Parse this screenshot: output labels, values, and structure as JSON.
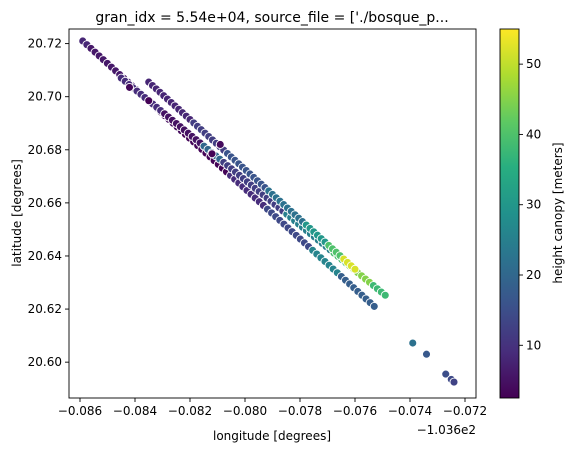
{
  "chart_data": {
    "type": "scatter",
    "title": "gran_idx = 5.54e+04, source_file = ['./bosque_p...",
    "xlabel": "longitude [degrees]",
    "ylabel": "latitude [degrees]",
    "x_offset_label": "−1.036e2",
    "xlim": [
      -0.0864,
      -0.0716
    ],
    "ylim": [
      20.5865,
      20.7255
    ],
    "x_ticks": [
      -0.086,
      -0.084,
      -0.082,
      -0.08,
      -0.078,
      -0.076,
      -0.074,
      -0.072
    ],
    "x_tick_labels": [
      "−0.086",
      "−0.084",
      "−0.082",
      "−0.080",
      "−0.078",
      "−0.076",
      "−0.074",
      "−0.072"
    ],
    "y_ticks": [
      20.6,
      20.62,
      20.64,
      20.66,
      20.68,
      20.7,
      20.72
    ],
    "y_tick_labels": [
      "20.60",
      "20.62",
      "20.64",
      "20.66",
      "20.68",
      "20.70",
      "20.72"
    ],
    "colorbar": {
      "label": "height canopy [meters]",
      "range": [
        2.5,
        55
      ],
      "ticks": [
        10,
        20,
        30,
        40,
        50
      ],
      "tick_labels": [
        "10",
        "20",
        "30",
        "40",
        "50"
      ],
      "colormap": "viridis"
    },
    "tracks": [
      {
        "x_start": -0.0859,
        "y_start": 20.721,
        "x_end": -0.0753,
        "y_end": 20.621,
        "count": 72,
        "segments": [
          [
            0,
            0.02,
            8
          ],
          [
            0.02,
            0.18,
            6
          ],
          [
            0.18,
            0.34,
            4
          ],
          [
            0.34,
            0.5,
            3
          ],
          [
            0.5,
            0.62,
            9
          ],
          [
            0.62,
            0.78,
            14
          ],
          [
            0.78,
            0.88,
            26
          ],
          [
            0.88,
            1.0,
            18
          ]
        ]
      },
      {
        "x_start": -0.0845,
        "y_start": 20.707,
        "x_end": -0.0749,
        "y_end": 20.6252,
        "count": 68,
        "segments": [
          [
            0,
            0.16,
            9
          ],
          [
            0.16,
            0.3,
            5
          ],
          [
            0.3,
            0.38,
            20
          ],
          [
            0.38,
            0.62,
            12
          ],
          [
            0.62,
            0.8,
            25
          ],
          [
            0.8,
            0.86,
            39
          ],
          [
            0.86,
            0.95,
            45
          ],
          [
            0.95,
            1.0,
            38
          ]
        ]
      },
      {
        "x_start": -0.0835,
        "y_start": 20.7055,
        "x_end": -0.076,
        "y_end": 20.635,
        "count": 56,
        "segments": [
          [
            0,
            0.2,
            8
          ],
          [
            0.2,
            0.38,
            12
          ],
          [
            0.38,
            0.58,
            16
          ],
          [
            0.58,
            0.76,
            22
          ],
          [
            0.76,
            0.86,
            30
          ],
          [
            0.86,
            0.94,
            40
          ],
          [
            0.94,
            1.0,
            52
          ]
        ]
      }
    ],
    "points": [
      {
        "x": -0.0739,
        "y": 20.6072,
        "c": 22
      },
      {
        "x": -0.0734,
        "y": 20.603,
        "c": 17
      },
      {
        "x": -0.0727,
        "y": 20.5955,
        "c": 15
      },
      {
        "x": -0.0725,
        "y": 20.5935,
        "c": 14
      },
      {
        "x": -0.0724,
        "y": 20.5925,
        "c": 13
      },
      {
        "x": -0.0809,
        "y": 20.682,
        "c": 4
      },
      {
        "x": -0.0812,
        "y": 20.6785,
        "c": 3
      },
      {
        "x": -0.0835,
        "y": 20.6985,
        "c": 2.8
      },
      {
        "x": -0.0842,
        "y": 20.7035,
        "c": 3.5
      }
    ]
  }
}
